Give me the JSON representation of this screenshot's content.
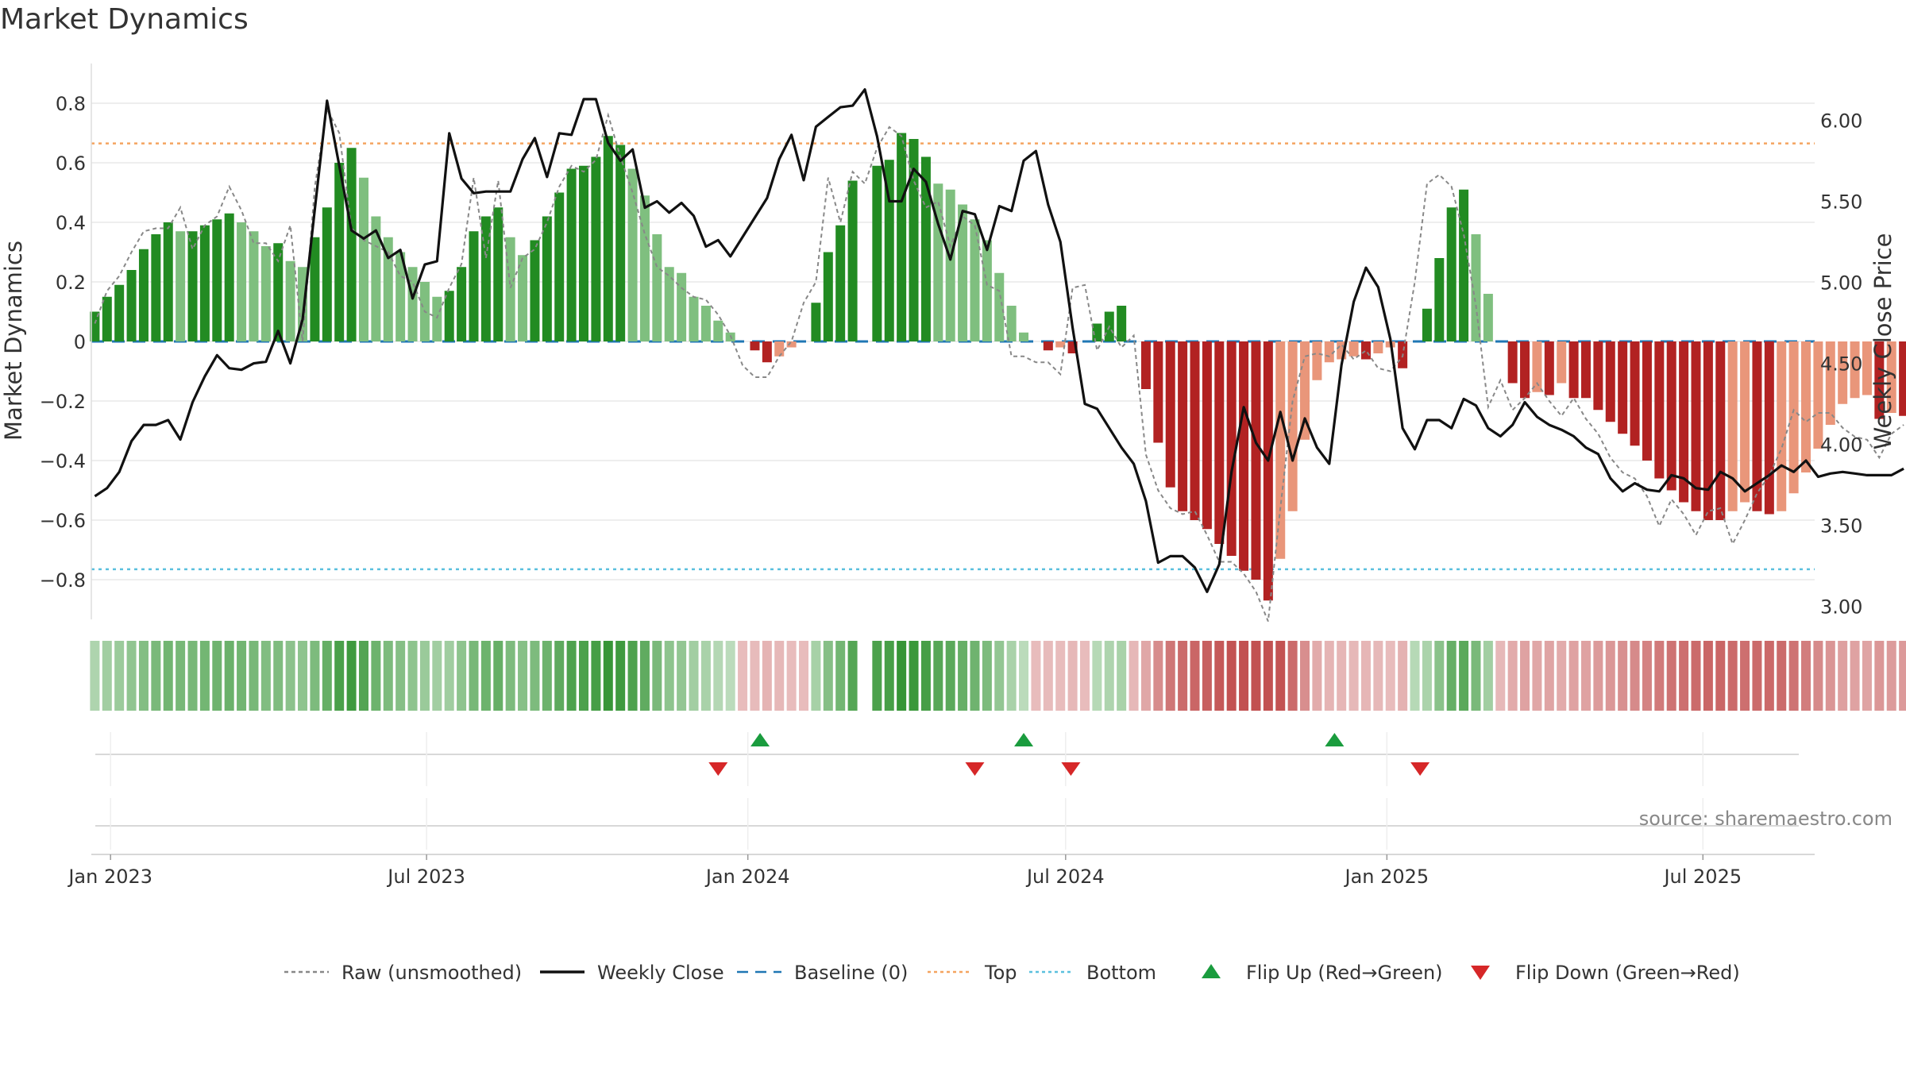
{
  "chart_data": {
    "type": "bar",
    "title": "Market Dynamics",
    "ylabel": "Market Dynamics",
    "y2label": "Weekly Close Price",
    "ylim": [
      -0.93,
      0.93
    ],
    "y2lim": [
      2.92,
      6.35
    ],
    "yticks": [
      "0.8",
      "0.6",
      "0.4",
      "0.2",
      "0",
      "−0.2",
      "−0.4",
      "−0.6",
      "−0.8"
    ],
    "y2ticks": [
      "6.00",
      "5.50",
      "5.00",
      "4.50",
      "4.00",
      "3.50",
      "3.00"
    ],
    "xticks": [
      "Jan 2023",
      "Jul 2023",
      "Jan 2024",
      "Jul 2024",
      "Jan 2025",
      "Jul 2025"
    ],
    "x_start": "2022-12-21",
    "x_end": "2025-09-03",
    "tick_dates": [
      "2023-01-01",
      "2023-07-01",
      "2024-01-01",
      "2024-07-01",
      "2025-01-01",
      "2025-07-01"
    ],
    "bar_start": "2022-12-23",
    "bar_interval_days": 7,
    "top_threshold": 0.665,
    "bottom_threshold": -0.765,
    "baseline": 0,
    "bar_values": [
      0.1,
      0.15,
      0.19,
      0.24,
      0.31,
      0.36,
      0.4,
      0.37,
      0.37,
      0.39,
      0.41,
      0.43,
      0.4,
      0.37,
      0.32,
      0.33,
      0.27,
      0.25,
      0.35,
      0.45,
      0.6,
      0.65,
      0.55,
      0.42,
      0.35,
      0.3,
      0.25,
      0.2,
      0.15,
      0.17,
      0.25,
      0.37,
      0.42,
      0.45,
      0.35,
      0.29,
      0.34,
      0.42,
      0.5,
      0.58,
      0.59,
      0.62,
      0.69,
      0.66,
      0.58,
      0.49,
      0.36,
      0.25,
      0.23,
      0.15,
      0.12,
      0.07,
      0.03,
      0.0,
      -0.03,
      -0.07,
      -0.05,
      -0.02,
      0.0,
      0.13,
      0.3,
      0.39,
      0.54,
      0.0,
      0.59,
      0.61,
      0.7,
      0.68,
      0.62,
      0.53,
      0.51,
      0.46,
      0.41,
      0.34,
      0.23,
      0.12,
      0.03,
      0.0,
      -0.03,
      -0.02,
      -0.04,
      0.0,
      0.06,
      0.1,
      0.12,
      0.0,
      -0.16,
      -0.34,
      -0.49,
      -0.57,
      -0.6,
      -0.63,
      -0.68,
      -0.72,
      -0.77,
      -0.8,
      -0.87,
      -0.73,
      -0.57,
      -0.33,
      -0.13,
      -0.07,
      -0.06,
      -0.05,
      -0.06,
      -0.04,
      -0.02,
      -0.09,
      0.0,
      0.11,
      0.28,
      0.45,
      0.51,
      0.36,
      0.16,
      0.0,
      -0.14,
      -0.19,
      -0.17,
      -0.18,
      -0.14,
      -0.19,
      -0.19,
      -0.23,
      -0.27,
      -0.31,
      -0.35,
      -0.4,
      -0.46,
      -0.5,
      -0.54,
      -0.57,
      -0.6,
      -0.6,
      -0.57,
      -0.54,
      -0.57,
      -0.58,
      -0.57,
      -0.51,
      -0.44,
      -0.36,
      -0.28,
      -0.21,
      -0.19,
      -0.18,
      -0.26,
      -0.24,
      -0.25,
      -0.28,
      -0.31,
      -0.29
    ],
    "raw_values": [
      0.06,
      0.17,
      0.22,
      0.3,
      0.37,
      0.38,
      0.38,
      0.45,
      0.31,
      0.39,
      0.42,
      0.52,
      0.44,
      0.33,
      0.33,
      0.27,
      0.39,
      0.0,
      0.52,
      0.78,
      0.7,
      0.38,
      0.34,
      0.32,
      0.3,
      0.22,
      0.2,
      0.1,
      0.08,
      0.18,
      0.26,
      0.55,
      0.28,
      0.54,
      0.18,
      0.28,
      0.31,
      0.4,
      0.52,
      0.59,
      0.57,
      0.61,
      0.76,
      0.62,
      0.5,
      0.36,
      0.25,
      0.22,
      0.18,
      0.15,
      0.14,
      0.09,
      0.02,
      -0.08,
      -0.12,
      -0.12,
      -0.05,
      0.0,
      0.13,
      0.2,
      0.55,
      0.4,
      0.57,
      0.53,
      0.65,
      0.72,
      0.69,
      0.54,
      0.45,
      0.47,
      0.32,
      0.42,
      0.39,
      0.19,
      0.17,
      -0.05,
      -0.05,
      -0.07,
      -0.07,
      -0.11,
      0.18,
      0.19,
      -0.03,
      0.05,
      -0.02,
      0.02,
      -0.38,
      -0.5,
      -0.56,
      -0.58,
      -0.57,
      -0.65,
      -0.74,
      -0.74,
      -0.78,
      -0.84,
      -0.94,
      -0.56,
      -0.2,
      -0.05,
      -0.04,
      -0.05,
      -0.01,
      -0.06,
      -0.03,
      -0.09,
      -0.1,
      -0.05,
      0.2,
      0.53,
      0.56,
      0.52,
      0.36,
      0.12,
      -0.22,
      -0.13,
      -0.23,
      -0.19,
      -0.14,
      -0.2,
      -0.25,
      -0.19,
      -0.26,
      -0.31,
      -0.39,
      -0.44,
      -0.46,
      -0.52,
      -0.62,
      -0.53,
      -0.58,
      -0.65,
      -0.57,
      -0.56,
      -0.68,
      -0.6,
      -0.51,
      -0.45,
      -0.36,
      -0.23,
      -0.27,
      -0.24,
      -0.24,
      -0.29,
      -0.32,
      -0.33,
      -0.39,
      -0.31,
      -0.28
    ],
    "close_values": [
      3.68,
      3.73,
      3.83,
      4.02,
      4.12,
      4.12,
      4.15,
      4.03,
      4.26,
      4.42,
      4.55,
      4.47,
      4.46,
      4.5,
      4.51,
      4.7,
      4.5,
      4.77,
      5.45,
      6.12,
      5.72,
      5.32,
      5.27,
      5.32,
      5.15,
      5.2,
      4.9,
      5.11,
      5.13,
      5.92,
      5.64,
      5.55,
      5.56,
      5.56,
      5.56,
      5.76,
      5.89,
      5.65,
      5.92,
      5.91,
      6.13,
      6.13,
      5.86,
      5.75,
      5.82,
      5.46,
      5.5,
      5.43,
      5.49,
      5.41,
      5.22,
      5.26,
      5.16,
      5.28,
      5.4,
      5.52,
      5.76,
      5.91,
      5.63,
      5.96,
      6.02,
      6.08,
      6.09,
      6.19,
      5.9,
      5.5,
      5.5,
      5.7,
      5.62,
      5.36,
      5.14,
      5.44,
      5.42,
      5.2,
      5.47,
      5.44,
      5.75,
      5.81,
      5.48,
      5.25,
      4.72,
      4.25,
      4.22,
      4.1,
      3.98,
      3.88,
      3.65,
      3.27,
      3.31,
      3.31,
      3.24,
      3.09,
      3.26,
      3.83,
      4.23,
      4.01,
      3.9,
      4.2,
      3.9,
      4.16,
      3.98,
      3.88,
      4.49,
      4.88,
      5.09,
      4.97,
      4.65,
      4.1,
      3.97,
      4.15,
      4.15,
      4.1,
      4.28,
      4.24,
      4.1,
      4.05,
      4.12,
      4.26,
      4.17,
      4.12,
      4.09,
      4.05,
      3.98,
      3.94,
      3.79,
      3.71,
      3.76,
      3.72,
      3.71,
      3.81,
      3.79,
      3.73,
      3.72,
      3.83,
      3.79,
      3.71,
      3.76,
      3.81,
      3.87,
      3.83,
      3.9,
      3.8,
      3.82,
      3.83,
      3.82,
      3.81,
      3.81,
      3.81,
      3.85
    ],
    "strip_values": [
      0.1,
      0.15,
      0.19,
      0.24,
      0.31,
      0.36,
      0.4,
      0.37,
      0.37,
      0.39,
      0.41,
      0.43,
      0.4,
      0.37,
      0.32,
      0.33,
      0.27,
      0.25,
      0.35,
      0.45,
      0.6,
      0.65,
      0.55,
      0.42,
      0.35,
      0.3,
      0.25,
      0.2,
      0.15,
      0.17,
      0.25,
      0.37,
      0.42,
      0.45,
      0.35,
      0.29,
      0.34,
      0.42,
      0.5,
      0.58,
      0.59,
      0.62,
      0.69,
      0.66,
      0.58,
      0.49,
      0.36,
      0.25,
      0.23,
      0.15,
      0.12,
      0.07,
      0.03,
      -0.02,
      -0.03,
      -0.07,
      -0.05,
      -0.02,
      -0.02,
      0.13,
      0.3,
      0.39,
      0.54,
      null,
      0.59,
      0.61,
      0.7,
      0.68,
      0.62,
      0.53,
      0.51,
      0.46,
      0.41,
      0.34,
      0.23,
      0.12,
      0.03,
      -0.02,
      -0.03,
      -0.02,
      -0.04,
      -0.02,
      0.06,
      0.1,
      0.12,
      -0.05,
      -0.16,
      -0.34,
      -0.49,
      -0.57,
      -0.6,
      -0.63,
      -0.68,
      -0.72,
      -0.77,
      -0.8,
      -0.87,
      -0.73,
      -0.57,
      -0.33,
      -0.13,
      -0.07,
      -0.06,
      -0.05,
      -0.06,
      -0.04,
      -0.02,
      -0.09,
      0.05,
      0.11,
      0.28,
      0.45,
      0.51,
      0.36,
      0.16,
      -0.05,
      -0.14,
      -0.19,
      -0.17,
      -0.18,
      -0.14,
      -0.19,
      -0.19,
      -0.23,
      -0.27,
      -0.31,
      -0.35,
      -0.4,
      -0.46,
      -0.5,
      -0.54,
      -0.57,
      -0.6,
      -0.6,
      -0.57,
      -0.54,
      -0.57,
      -0.58,
      -0.57,
      -0.51,
      -0.44,
      -0.36,
      -0.28,
      -0.21,
      -0.19,
      -0.18,
      -0.26,
      -0.24,
      -0.25,
      -0.28,
      -0.31,
      -0.29
    ],
    "flip_up_dates": [
      "2024-01-08",
      "2024-06-07",
      "2024-12-02"
    ],
    "flip_down_dates": [
      "2023-12-15",
      "2024-05-10",
      "2024-07-04",
      "2025-01-20"
    ],
    "legend": [
      {
        "label": "Raw (unsmoothed)",
        "kind": "dashed-line",
        "color": "#888888"
      },
      {
        "label": "Weekly Close",
        "kind": "line",
        "color": "#111111"
      },
      {
        "label": "Baseline (0)",
        "kind": "dashed-line",
        "color": "#1f77b4"
      },
      {
        "label": "Top",
        "kind": "dotted-line",
        "color": "#f4a460"
      },
      {
        "label": "Bottom",
        "kind": "dotted-line",
        "color": "#5bc0de"
      },
      {
        "label": "Flip Up (Red→Green)",
        "kind": "triangle-up",
        "color": "#1a9c3e"
      },
      {
        "label": "Flip Down (Green→Red)",
        "kind": "triangle-down",
        "color": "#d62728"
      }
    ],
    "legend_position": "bottom-center",
    "source": "source: sharemaestro.com"
  },
  "colors": {
    "green_strong": "#228b22",
    "green_light": "#7fbf7f",
    "red_strong": "#b22222",
    "red_light": "#e9967a",
    "close_line": "#111111",
    "raw_line": "#888888",
    "baseline": "#1f77b4",
    "top_line": "#f4a460",
    "bottom_line": "#5bc0de",
    "flip_up": "#1a9c3e",
    "flip_down": "#d62728",
    "grid": "#e8e8e8"
  }
}
